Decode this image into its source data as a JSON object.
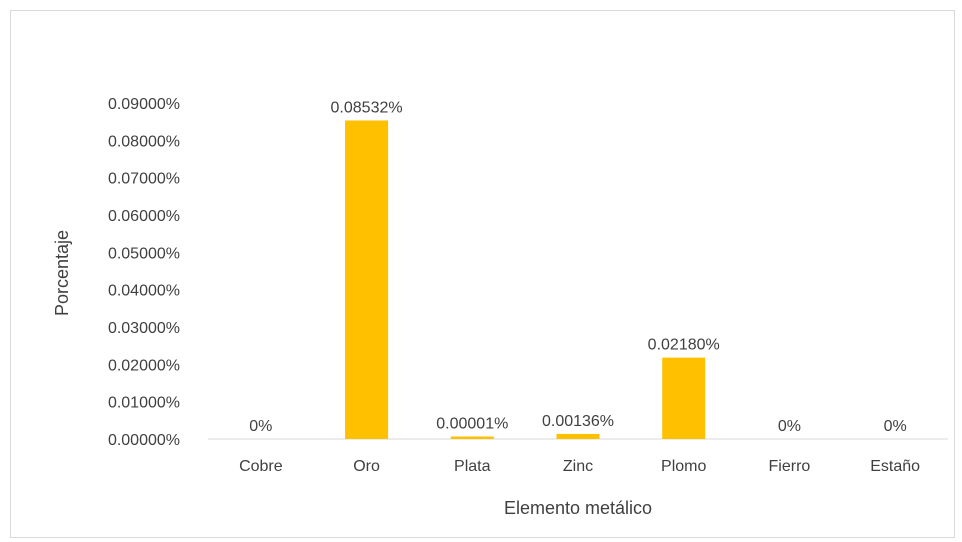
{
  "chart_data": {
    "type": "bar",
    "title": "",
    "xlabel": "Elemento metálico",
    "ylabel": "Porcentaje",
    "categories": [
      "Cobre",
      "Oro",
      "Plata",
      "Zinc",
      "Plomo",
      "Fierro",
      "Estaño"
    ],
    "values": [
      0,
      0.08532,
      1e-05,
      0.00136,
      0.0218,
      0,
      0
    ],
    "data_labels": [
      "0%",
      "0.08532%",
      "0.00001%",
      "0.00136%",
      "0.02180%",
      "0%",
      "0%"
    ],
    "ylim": [
      0,
      0.09
    ],
    "yticks": [
      {
        "value": 0,
        "label": "0.00000%"
      },
      {
        "value": 0.01,
        "label": "0.01000%"
      },
      {
        "value": 0.02,
        "label": "0.02000%"
      },
      {
        "value": 0.03,
        "label": "0.03000%"
      },
      {
        "value": 0.04,
        "label": "0.04000%"
      },
      {
        "value": 0.05,
        "label": "0.05000%"
      },
      {
        "value": 0.06,
        "label": "0.06000%"
      },
      {
        "value": 0.07,
        "label": "0.07000%"
      },
      {
        "value": 0.08,
        "label": "0.08000%"
      },
      {
        "value": 0.09,
        "label": "0.09000%"
      }
    ],
    "grid": false,
    "legend": "none",
    "bar_color": "#ffc000",
    "baseline_color": "#d9d9d9"
  }
}
